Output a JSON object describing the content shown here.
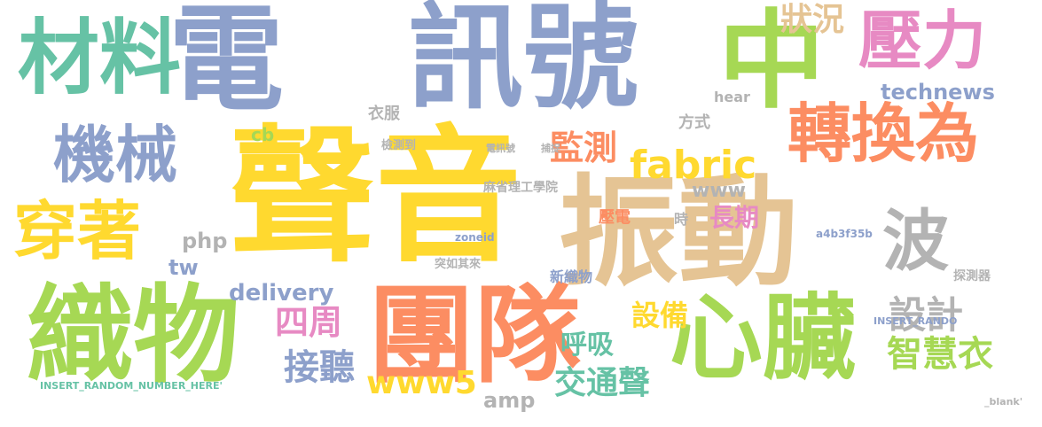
{
  "palette": {
    "green": "#a6d854",
    "teal": "#66c2a5",
    "blue": "#8da0cb",
    "yellow": "#ffd92f",
    "tan": "#e5c494",
    "orange": "#fc8d62",
    "pink": "#e78ac3",
    "gray": "#b3b3b3"
  },
  "words": [
    "聲音",
    "振動",
    "電",
    "訊號",
    "中",
    "團隊",
    "織物",
    "材料",
    "心臟",
    "壓力",
    "機械",
    "轉換為",
    "穿著",
    "波",
    "fabric",
    "四周",
    "設計",
    "智慧衣",
    "監測",
    "接聽",
    "狀況",
    "www5",
    "technews",
    "交通聲",
    "呼吸",
    "設備",
    "長期",
    "www",
    "php",
    "tw",
    "delivery",
    "amp",
    "cb",
    "麻省理工學院",
    "檢測到",
    "衣服",
    "方式",
    "hear",
    "壓電",
    "時",
    "新織物",
    "zoneid",
    "a4b3f35b",
    "突如其來",
    "電訊號",
    "捕捉",
    "INSERT_RANDOM_NUMBER_HERE'",
    "INSERT_RANDO",
    "探測器",
    "_blank'"
  ]
}
